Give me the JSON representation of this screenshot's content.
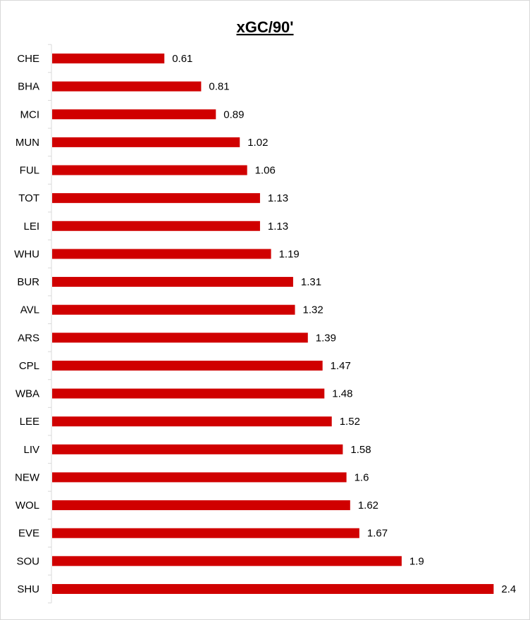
{
  "chart_data": {
    "type": "bar",
    "orientation": "horizontal",
    "title": "xGC/90'",
    "xlabel": "",
    "ylabel": "",
    "categories": [
      "CHE",
      "BHA",
      "MCI",
      "MUN",
      "FUL",
      "TOT",
      "LEI",
      "WHU",
      "BUR",
      "AVL",
      "ARS",
      "CPL",
      "WBA",
      "LEE",
      "LIV",
      "NEW",
      "WOL",
      "EVE",
      "SOU",
      "SHU"
    ],
    "values": [
      0.61,
      0.81,
      0.89,
      1.02,
      1.06,
      1.13,
      1.13,
      1.19,
      1.31,
      1.32,
      1.39,
      1.47,
      1.48,
      1.52,
      1.58,
      1.6,
      1.62,
      1.67,
      1.9,
      2.4
    ],
    "value_labels": [
      "0.61",
      "0.81",
      "0.89",
      "1.02",
      "1.06",
      "1.13",
      "1.13",
      "1.19",
      "1.31",
      "1.32",
      "1.39",
      "1.47",
      "1.48",
      "1.52",
      "1.58",
      "1.6",
      "1.62",
      "1.67",
      "1.9",
      "2.4"
    ],
    "xlim": [
      0,
      2.6
    ],
    "grid": false,
    "legend": "none",
    "bar_color": "#D00000"
  }
}
